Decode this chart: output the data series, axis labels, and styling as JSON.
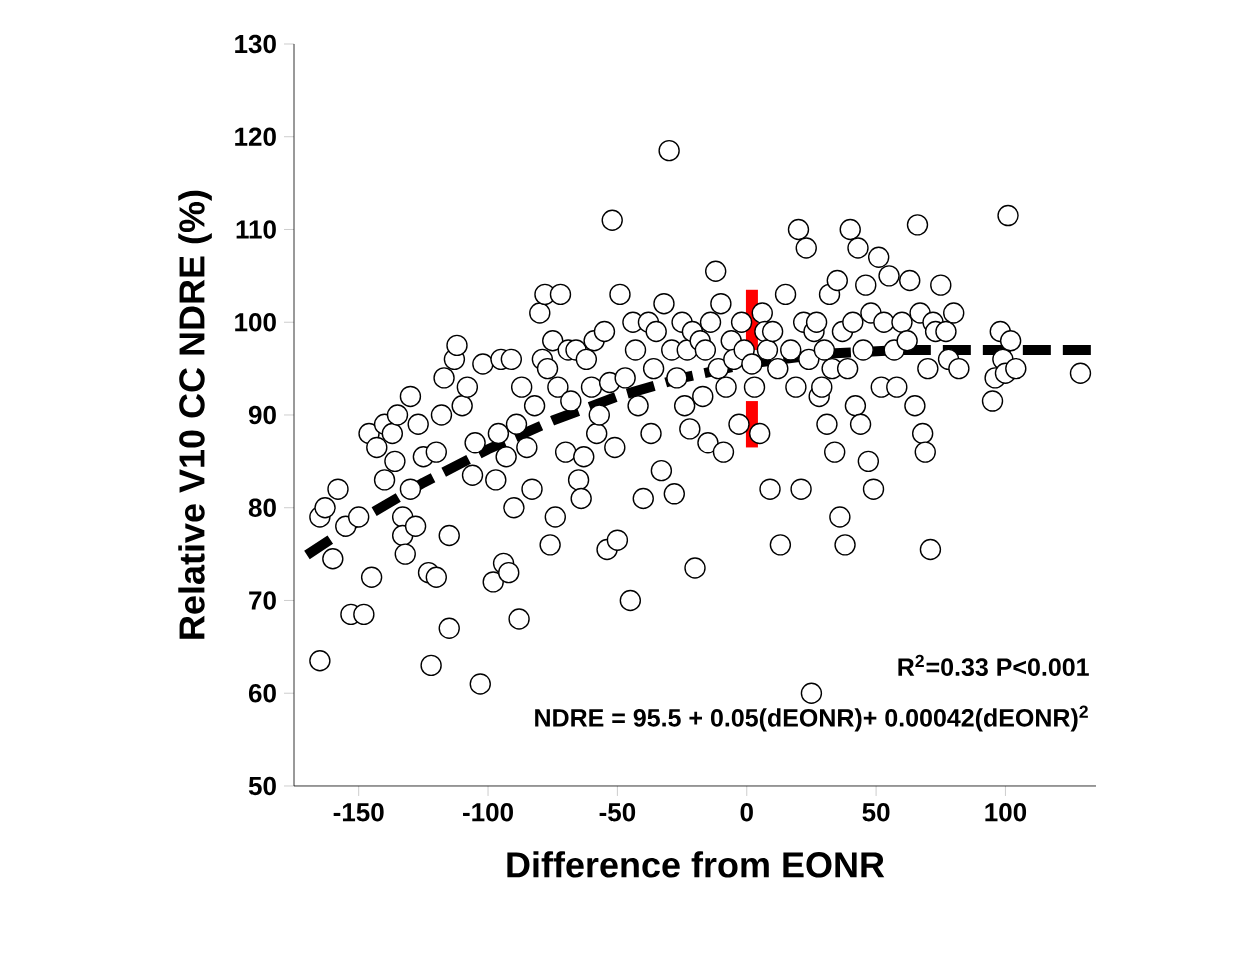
{
  "chart_data": {
    "type": "scatter",
    "xlabel": "Difference from EONR",
    "ylabel": "Relative V10 CC NDRE (%)",
    "xlim": [
      -175,
      135
    ],
    "xticks": [
      -150,
      -100,
      -50,
      0,
      50,
      100
    ],
    "ylim": [
      50,
      130
    ],
    "yticks": [
      50,
      60,
      70,
      80,
      90,
      100,
      110,
      120,
      130
    ],
    "grid": false,
    "annotations": [
      "R$^{2}$=0.33  P<0.001",
      "NDRE = 95.5 + 0.05(dEONR)+ 0.00042(dEONR)$^{2}$"
    ],
    "series": [
      {
        "color": "#000000",
        "marker": "circle",
        "x": [
          -165,
          -165,
          -163,
          -160,
          -158,
          -155,
          -153,
          -150,
          -148,
          -146,
          -145,
          -143,
          -140,
          -140,
          -137,
          -136,
          -135,
          -133,
          -133,
          -132,
          -130,
          -130,
          -128,
          -127,
          -125,
          -123,
          -122,
          -120,
          -120,
          -118,
          -117,
          -115,
          -115,
          -113,
          -112,
          -110,
          -108,
          -106,
          -105,
          -103,
          -102,
          -98,
          -97,
          -96,
          -95,
          -94,
          -93,
          -92,
          -91,
          -90,
          -89,
          -88,
          -87,
          -85,
          -83,
          -82,
          -80,
          -79,
          -78,
          -77,
          -76,
          -75,
          -74,
          -73,
          -72,
          -70,
          -69,
          -68,
          -66,
          -65,
          -64,
          -63,
          -62,
          -60,
          -59,
          -58,
          -57,
          -55,
          -54,
          -53,
          -52,
          -51,
          -50,
          -49,
          -47,
          -45,
          -44,
          -43,
          -42,
          -40,
          -38,
          -37,
          -36,
          -35,
          -33,
          -32,
          -30,
          -29,
          -28,
          -27,
          -25,
          -24,
          -23,
          -22,
          -21,
          -20,
          -18,
          -17,
          -16,
          -15,
          -14,
          -12,
          -11,
          -10,
          -9,
          -8,
          -6,
          -5,
          -3,
          -2,
          -1,
          2,
          3,
          5,
          6,
          7,
          8,
          9,
          10,
          12,
          13,
          15,
          17,
          19,
          20,
          21,
          22,
          23,
          24,
          25,
          26,
          27,
          28,
          29,
          30,
          31,
          32,
          33,
          34,
          35,
          36,
          37,
          38,
          39,
          40,
          41,
          42,
          43,
          44,
          45,
          46,
          47,
          48,
          49,
          51,
          52,
          53,
          55,
          57,
          58,
          60,
          62,
          63,
          65,
          66,
          67,
          68,
          69,
          70,
          71,
          72,
          73,
          75,
          77,
          78,
          80,
          82,
          95,
          96,
          98,
          99,
          100,
          101,
          102,
          104,
          129
        ],
        "values": [
          63.5,
          79,
          80,
          74.5,
          82,
          78,
          68.5,
          79,
          68.5,
          88,
          72.5,
          86.5,
          89,
          83,
          88,
          85,
          90,
          79,
          77,
          75,
          82,
          92,
          78,
          89,
          85.5,
          73,
          63,
          72.5,
          86,
          90,
          94,
          77,
          67,
          96,
          97.5,
          91,
          93,
          83.5,
          87,
          61,
          95.5,
          72,
          83,
          88,
          96,
          74,
          85.5,
          73,
          96,
          80,
          89,
          68,
          93,
          86.5,
          82,
          91,
          101,
          96,
          103,
          95,
          76,
          98,
          79,
          93,
          103,
          86,
          97,
          91.5,
          97,
          83,
          81,
          85.5,
          96,
          93,
          98,
          88,
          90,
          99,
          75.5,
          93.5,
          111,
          86.5,
          76.5,
          103,
          94,
          70,
          100,
          97,
          91,
          81,
          100,
          88,
          95,
          99,
          84,
          102,
          118.5,
          97,
          81.5,
          94,
          100,
          91,
          97,
          88.5,
          99,
          73.5,
          98,
          92,
          97,
          87,
          100,
          105.5,
          95,
          102,
          86,
          93,
          98,
          96,
          89,
          100,
          97,
          95.5,
          93,
          88,
          101,
          99,
          97,
          82,
          99,
          95,
          76,
          103,
          97,
          93,
          110,
          82,
          100,
          108,
          96,
          60,
          99,
          100,
          92,
          93,
          97,
          89,
          103,
          95,
          86,
          104.5,
          79,
          99,
          76,
          95,
          110,
          100,
          91,
          108,
          89,
          97,
          104,
          85,
          101,
          82,
          107,
          93,
          100,
          105,
          97,
          93,
          100,
          98,
          104.5,
          91,
          110.5,
          101,
          88,
          86,
          95,
          75.5,
          100,
          99,
          104,
          99,
          96,
          101,
          95,
          91.5,
          94,
          99,
          96,
          94.5,
          111.5,
          98,
          95,
          94.5
        ]
      },
      {
        "type": "line",
        "color": "#000000",
        "marker": "none",
        "line_style": "dashed",
        "x": [
          -170,
          -150,
          -125,
          -100,
          -75,
          -50,
          -25,
          0,
          30,
          59.5,
          135
        ],
        "values": [
          74.9,
          78.6,
          82.7,
          86.3,
          89.4,
          92,
          94,
          95.5,
          96.6,
          97,
          97
        ]
      },
      {
        "type": "line",
        "color": "#ff0000",
        "marker": "none",
        "line_style": "solid",
        "x": [
          2,
          2
        ],
        "values": [
          86.5,
          91.5
        ]
      },
      {
        "type": "line",
        "color": "#ff0000",
        "marker": "none",
        "line_style": "solid",
        "x": [
          2,
          2
        ],
        "values": [
          97,
          103.5
        ]
      }
    ]
  }
}
